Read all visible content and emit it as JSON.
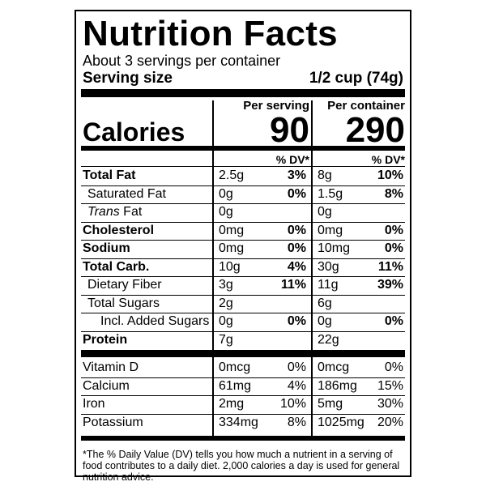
{
  "title": "Nutrition Facts",
  "servings": "About 3 servings per container",
  "serving_size_label": "Serving size",
  "serving_size_value": "1/2 cup (74g)",
  "col_per_serving": "Per serving",
  "col_per_container": "Per container",
  "calories_label": "Calories",
  "calories_serving": "90",
  "calories_container": "290",
  "dv_header": "% DV*",
  "nutrients": [
    {
      "name": "Total Fat",
      "bold": true,
      "indent": 0,
      "s_amt": "2.5g",
      "s_dv": "3%",
      "c_amt": "8g",
      "c_dv": "10%"
    },
    {
      "name": "Saturated Fat",
      "bold": false,
      "indent": 1,
      "s_amt": "0g",
      "s_dv": "0%",
      "c_amt": "1.5g",
      "c_dv": "8%"
    },
    {
      "name": "Trans",
      "name_suffix": " Fat",
      "italic": true,
      "bold": false,
      "indent": 1,
      "s_amt": "0g",
      "s_dv": "",
      "c_amt": "0g",
      "c_dv": ""
    },
    {
      "name": "Cholesterol",
      "bold": true,
      "indent": 0,
      "s_amt": "0mg",
      "s_dv": "0%",
      "c_amt": "0mg",
      "c_dv": "0%"
    },
    {
      "name": "Sodium",
      "bold": true,
      "indent": 0,
      "s_amt": "0mg",
      "s_dv": "0%",
      "c_amt": "10mg",
      "c_dv": "0%"
    },
    {
      "name": "Total Carb.",
      "bold": true,
      "indent": 0,
      "s_amt": "10g",
      "s_dv": "4%",
      "c_amt": "30g",
      "c_dv": "11%"
    },
    {
      "name": "Dietary Fiber",
      "bold": false,
      "indent": 1,
      "s_amt": "3g",
      "s_dv": "11%",
      "c_amt": "11g",
      "c_dv": "39%"
    },
    {
      "name": "Total Sugars",
      "bold": false,
      "indent": 1,
      "s_amt": "2g",
      "s_dv": "",
      "c_amt": "6g",
      "c_dv": ""
    },
    {
      "name": "Incl. Added Sugars",
      "bold": false,
      "indent": 2,
      "s_amt": "0g",
      "s_dv": "0%",
      "c_amt": "0g",
      "c_dv": "0%"
    },
    {
      "name": "Protein",
      "bold": true,
      "indent": 0,
      "s_amt": "7g",
      "s_dv": "",
      "c_amt": "22g",
      "c_dv": ""
    }
  ],
  "vitamins": [
    {
      "name": "Vitamin D",
      "s_amt": "0mcg",
      "s_dv": "0%",
      "c_amt": "0mcg",
      "c_dv": "0%"
    },
    {
      "name": "Calcium",
      "s_amt": "61mg",
      "s_dv": "4%",
      "c_amt": "186mg",
      "c_dv": "15%"
    },
    {
      "name": "Iron",
      "s_amt": "2mg",
      "s_dv": "10%",
      "c_amt": "5mg",
      "c_dv": "30%"
    },
    {
      "name": "Potassium",
      "s_amt": "334mg",
      "s_dv": "8%",
      "c_amt": "1025mg",
      "c_dv": "20%"
    }
  ],
  "footnote": "*The % Daily Value (DV) tells you how much a nutrient in a serving of food contributes to a daily diet. 2,000 calories a day is used for general nutrition advice."
}
